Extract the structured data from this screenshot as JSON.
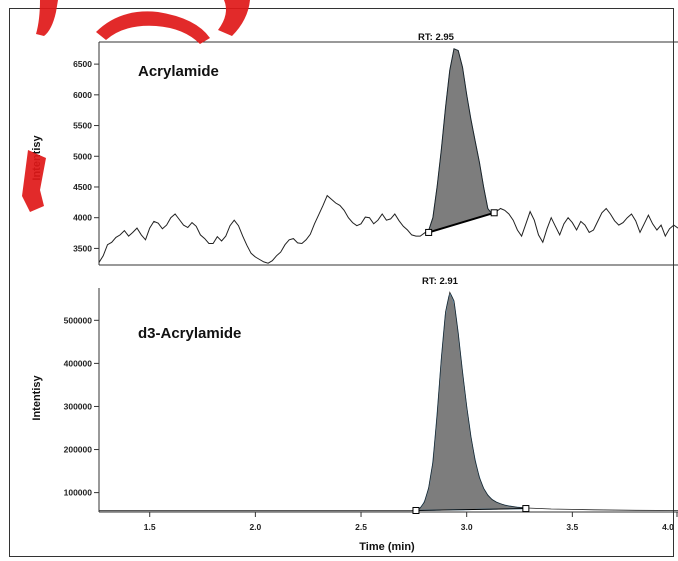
{
  "colors": {
    "trace": "#222222",
    "peak_fill": "#7d7d7d",
    "peak_edge": "#5aa6d6",
    "watermark": "#e01818"
  },
  "chart_data": [
    {
      "type": "area",
      "panel_label": "Acrylamide",
      "ylabel": "Intentisy",
      "xlabel": "",
      "rt_label": "RT: 2.95",
      "xlim": [
        1.26,
        4.0
      ],
      "ylim": [
        3230,
        6860
      ],
      "yticks": [
        {
          "value": 3500,
          "label": "3500"
        },
        {
          "value": 4000,
          "label": "4000"
        },
        {
          "value": 4500,
          "label": "4500"
        },
        {
          "value": 5000,
          "label": "5000"
        },
        {
          "value": 5500,
          "label": "5500"
        },
        {
          "value": 6000,
          "label": "6000"
        },
        {
          "value": 6500,
          "label": "6500"
        }
      ],
      "trace": [
        [
          1.26,
          3270
        ],
        [
          1.28,
          3380
        ],
        [
          1.3,
          3560
        ],
        [
          1.32,
          3600
        ],
        [
          1.34,
          3680
        ],
        [
          1.36,
          3720
        ],
        [
          1.38,
          3790
        ],
        [
          1.4,
          3700
        ],
        [
          1.42,
          3760
        ],
        [
          1.44,
          3830
        ],
        [
          1.46,
          3720
        ],
        [
          1.48,
          3640
        ],
        [
          1.5,
          3830
        ],
        [
          1.52,
          3940
        ],
        [
          1.54,
          3910
        ],
        [
          1.56,
          3820
        ],
        [
          1.58,
          3880
        ],
        [
          1.6,
          4000
        ],
        [
          1.62,
          4060
        ],
        [
          1.64,
          3970
        ],
        [
          1.66,
          3880
        ],
        [
          1.68,
          3840
        ],
        [
          1.7,
          3920
        ],
        [
          1.72,
          3860
        ],
        [
          1.74,
          3720
        ],
        [
          1.76,
          3660
        ],
        [
          1.78,
          3580
        ],
        [
          1.8,
          3580
        ],
        [
          1.82,
          3690
        ],
        [
          1.84,
          3620
        ],
        [
          1.86,
          3700
        ],
        [
          1.88,
          3870
        ],
        [
          1.9,
          3960
        ],
        [
          1.92,
          3870
        ],
        [
          1.94,
          3700
        ],
        [
          1.96,
          3550
        ],
        [
          1.98,
          3420
        ],
        [
          2.0,
          3360
        ],
        [
          2.02,
          3320
        ],
        [
          2.04,
          3280
        ],
        [
          2.06,
          3260
        ],
        [
          2.08,
          3300
        ],
        [
          2.1,
          3380
        ],
        [
          2.12,
          3440
        ],
        [
          2.14,
          3560
        ],
        [
          2.16,
          3640
        ],
        [
          2.18,
          3660
        ],
        [
          2.2,
          3590
        ],
        [
          2.22,
          3580
        ],
        [
          2.24,
          3640
        ],
        [
          2.26,
          3730
        ],
        [
          2.28,
          3900
        ],
        [
          2.3,
          4050
        ],
        [
          2.32,
          4200
        ],
        [
          2.34,
          4360
        ],
        [
          2.36,
          4300
        ],
        [
          2.38,
          4240
        ],
        [
          2.4,
          4200
        ],
        [
          2.42,
          4120
        ],
        [
          2.44,
          4000
        ],
        [
          2.46,
          3920
        ],
        [
          2.48,
          3870
        ],
        [
          2.5,
          3900
        ],
        [
          2.52,
          4010
        ],
        [
          2.54,
          4000
        ],
        [
          2.56,
          3900
        ],
        [
          2.58,
          3960
        ],
        [
          2.6,
          4060
        ],
        [
          2.62,
          3960
        ],
        [
          2.64,
          3980
        ],
        [
          2.66,
          4060
        ],
        [
          2.68,
          3950
        ],
        [
          2.7,
          3860
        ],
        [
          2.72,
          3800
        ],
        [
          2.74,
          3720
        ],
        [
          2.76,
          3700
        ],
        [
          2.78,
          3700
        ],
        [
          2.8,
          3750
        ],
        [
          2.82,
          3790
        ],
        [
          2.84,
          4000
        ],
        [
          2.86,
          4500
        ],
        [
          2.88,
          5100
        ],
        [
          2.9,
          5800
        ],
        [
          2.92,
          6400
        ],
        [
          2.94,
          6750
        ],
        [
          2.96,
          6720
        ],
        [
          2.98,
          6450
        ],
        [
          3.0,
          6000
        ],
        [
          3.02,
          5600
        ],
        [
          3.04,
          5250
        ],
        [
          3.06,
          4900
        ],
        [
          3.08,
          4500
        ],
        [
          3.1,
          4150
        ],
        [
          3.12,
          4060
        ],
        [
          3.14,
          4100
        ],
        [
          3.16,
          4150
        ],
        [
          3.18,
          4120
        ],
        [
          3.2,
          4060
        ],
        [
          3.22,
          3960
        ],
        [
          3.24,
          3800
        ],
        [
          3.26,
          3700
        ],
        [
          3.28,
          3900
        ],
        [
          3.3,
          4100
        ],
        [
          3.32,
          3960
        ],
        [
          3.34,
          3720
        ],
        [
          3.36,
          3600
        ],
        [
          3.38,
          3820
        ],
        [
          3.4,
          4000
        ],
        [
          3.42,
          3860
        ],
        [
          3.44,
          3720
        ],
        [
          3.46,
          3900
        ],
        [
          3.48,
          4000
        ],
        [
          3.5,
          3920
        ],
        [
          3.52,
          3800
        ],
        [
          3.54,
          3940
        ],
        [
          3.56,
          3880
        ],
        [
          3.58,
          3760
        ],
        [
          3.6,
          3800
        ],
        [
          3.62,
          3940
        ],
        [
          3.64,
          4080
        ],
        [
          3.66,
          4150
        ],
        [
          3.68,
          4060
        ],
        [
          3.7,
          3950
        ],
        [
          3.72,
          3880
        ],
        [
          3.74,
          3920
        ],
        [
          3.76,
          4000
        ],
        [
          3.78,
          4060
        ],
        [
          3.8,
          3950
        ],
        [
          3.82,
          3760
        ],
        [
          3.84,
          3900
        ],
        [
          3.86,
          4040
        ],
        [
          3.88,
          3900
        ],
        [
          3.9,
          3800
        ],
        [
          3.92,
          3880
        ],
        [
          3.94,
          3700
        ],
        [
          3.96,
          3820
        ],
        [
          3.98,
          3880
        ],
        [
          4.0,
          3830
        ]
      ],
      "peak_area": {
        "start": 2.82,
        "end": 3.12
      },
      "baseline": {
        "start": [
          2.82,
          3760
        ],
        "end": [
          3.13,
          4080
        ]
      }
    },
    {
      "type": "area",
      "panel_label": "d3-Acrylamide",
      "ylabel": "Intentisy",
      "xlabel": "Time (min)",
      "rt_label": "RT: 2.91",
      "xlim": [
        1.26,
        4.0
      ],
      "ylim": [
        55000,
        575000
      ],
      "yticks": [
        {
          "value": 100000,
          "label": "100000"
        },
        {
          "value": 200000,
          "label": "200000"
        },
        {
          "value": 300000,
          "label": "300000"
        },
        {
          "value": 400000,
          "label": "400000"
        },
        {
          "value": 500000,
          "label": "500000"
        }
      ],
      "xticks": [
        {
          "value": 1.5,
          "label": "1.5"
        },
        {
          "value": 2.0,
          "label": "2.0"
        },
        {
          "value": 2.5,
          "label": "2.5"
        },
        {
          "value": 3.0,
          "label": "3.0"
        },
        {
          "value": 3.5,
          "label": "3.5"
        },
        {
          "value": 4.0,
          "label": "4.0"
        }
      ],
      "trace": [
        [
          1.26,
          58000
        ],
        [
          2.74,
          58000
        ],
        [
          2.76,
          60000
        ],
        [
          2.78,
          64000
        ],
        [
          2.8,
          78000
        ],
        [
          2.82,
          110000
        ],
        [
          2.84,
          170000
        ],
        [
          2.86,
          280000
        ],
        [
          2.88,
          410000
        ],
        [
          2.9,
          520000
        ],
        [
          2.92,
          565000
        ],
        [
          2.94,
          545000
        ],
        [
          2.96,
          470000
        ],
        [
          2.98,
          380000
        ],
        [
          3.0,
          300000
        ],
        [
          3.02,
          230000
        ],
        [
          3.04,
          175000
        ],
        [
          3.06,
          135000
        ],
        [
          3.08,
          110000
        ],
        [
          3.1,
          94000
        ],
        [
          3.12,
          84000
        ],
        [
          3.14,
          78000
        ],
        [
          3.16,
          74000
        ],
        [
          3.18,
          71000
        ],
        [
          3.2,
          69000
        ],
        [
          3.24,
          66000
        ],
        [
          3.3,
          64000
        ],
        [
          3.4,
          62000
        ],
        [
          3.5,
          61000
        ],
        [
          3.6,
          60000
        ],
        [
          3.8,
          59000
        ],
        [
          4.0,
          58500
        ]
      ],
      "peak_area": {
        "start": 2.76,
        "end": 3.28
      },
      "baseline": {
        "start": [
          2.76,
          58500
        ],
        "end": [
          3.28,
          63000
        ]
      }
    }
  ]
}
